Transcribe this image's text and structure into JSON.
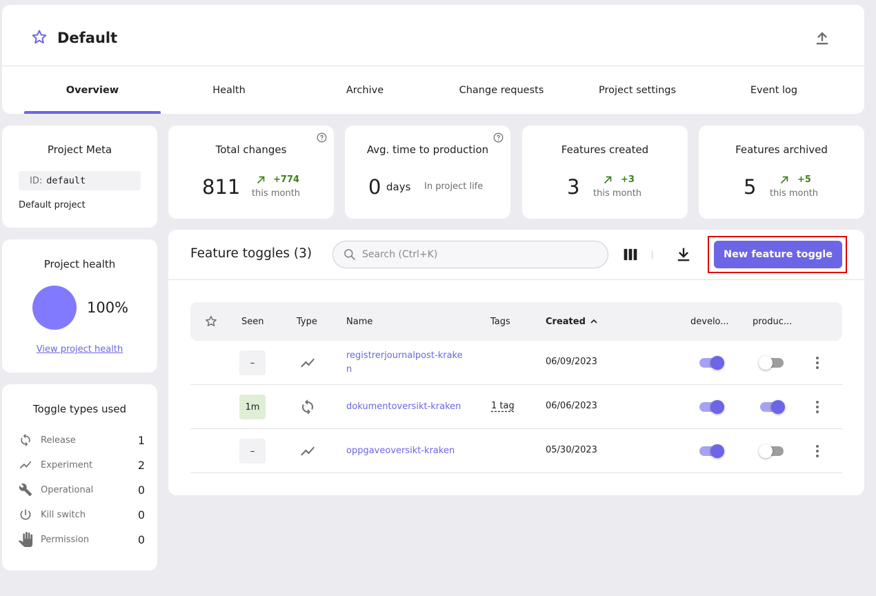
{
  "header": {
    "title": "Default",
    "tabs": [
      {
        "label": "Overview",
        "active": true
      },
      {
        "label": "Health"
      },
      {
        "label": "Archive"
      },
      {
        "label": "Change requests"
      },
      {
        "label": "Project settings"
      },
      {
        "label": "Event log"
      }
    ]
  },
  "meta": {
    "title": "Project Meta",
    "id_label": "ID:",
    "id_value": "default",
    "description": "Default project"
  },
  "health": {
    "title": "Project health",
    "percent": "100%",
    "link": "View project health",
    "color": "#817afe"
  },
  "toggle_types": {
    "title": "Toggle types used",
    "items": [
      {
        "name": "Release",
        "count": "1",
        "icon": "release-icon"
      },
      {
        "name": "Experiment",
        "count": "2",
        "icon": "experiment-icon"
      },
      {
        "name": "Operational",
        "count": "0",
        "icon": "wrench-icon"
      },
      {
        "name": "Kill switch",
        "count": "0",
        "icon": "power-icon"
      },
      {
        "name": "Permission",
        "count": "0",
        "icon": "hand-icon"
      }
    ]
  },
  "stats": {
    "total_changes": {
      "title": "Total changes",
      "value": "811",
      "delta": "+774",
      "period": "this month"
    },
    "avg_time": {
      "title": "Avg. time to production",
      "value": "0",
      "unit": "days",
      "note": "In project life"
    },
    "features_created": {
      "title": "Features created",
      "value": "3",
      "delta": "+3",
      "period": "this month"
    },
    "features_archived": {
      "title": "Features archived",
      "value": "5",
      "delta": "+5",
      "period": "this month"
    }
  },
  "features": {
    "title": "Feature toggles (3)",
    "search_placeholder": "Search (Ctrl+K)",
    "new_button": "New feature toggle",
    "columns": {
      "seen": "Seen",
      "type": "Type",
      "name": "Name",
      "tags": "Tags",
      "created": "Created",
      "env1": "develo...",
      "env2": "produc..."
    },
    "rows": [
      {
        "seen": "–",
        "type_icon": "experiment-icon",
        "name_line1": "registrerjournalpost-krake",
        "name_line2": "n",
        "tags": "",
        "created": "06/09/2023",
        "env1": true,
        "env2": false
      },
      {
        "seen": "1m",
        "type_icon": "release-icon",
        "name_line1": "dokumentoversikt-kraken",
        "name_line2": "",
        "tags": "1 tag",
        "created": "06/06/2023",
        "env1": true,
        "env2": true
      },
      {
        "seen": "–",
        "type_icon": "experiment-icon",
        "name_line1": "oppgaveoversikt-kraken",
        "name_line2": "",
        "tags": "",
        "created": "05/30/2023",
        "env1": true,
        "env2": false
      }
    ]
  },
  "colors": {
    "primary": "#6c65e5",
    "positive": "#3e7e1c",
    "highlight_border": "#e00000"
  }
}
